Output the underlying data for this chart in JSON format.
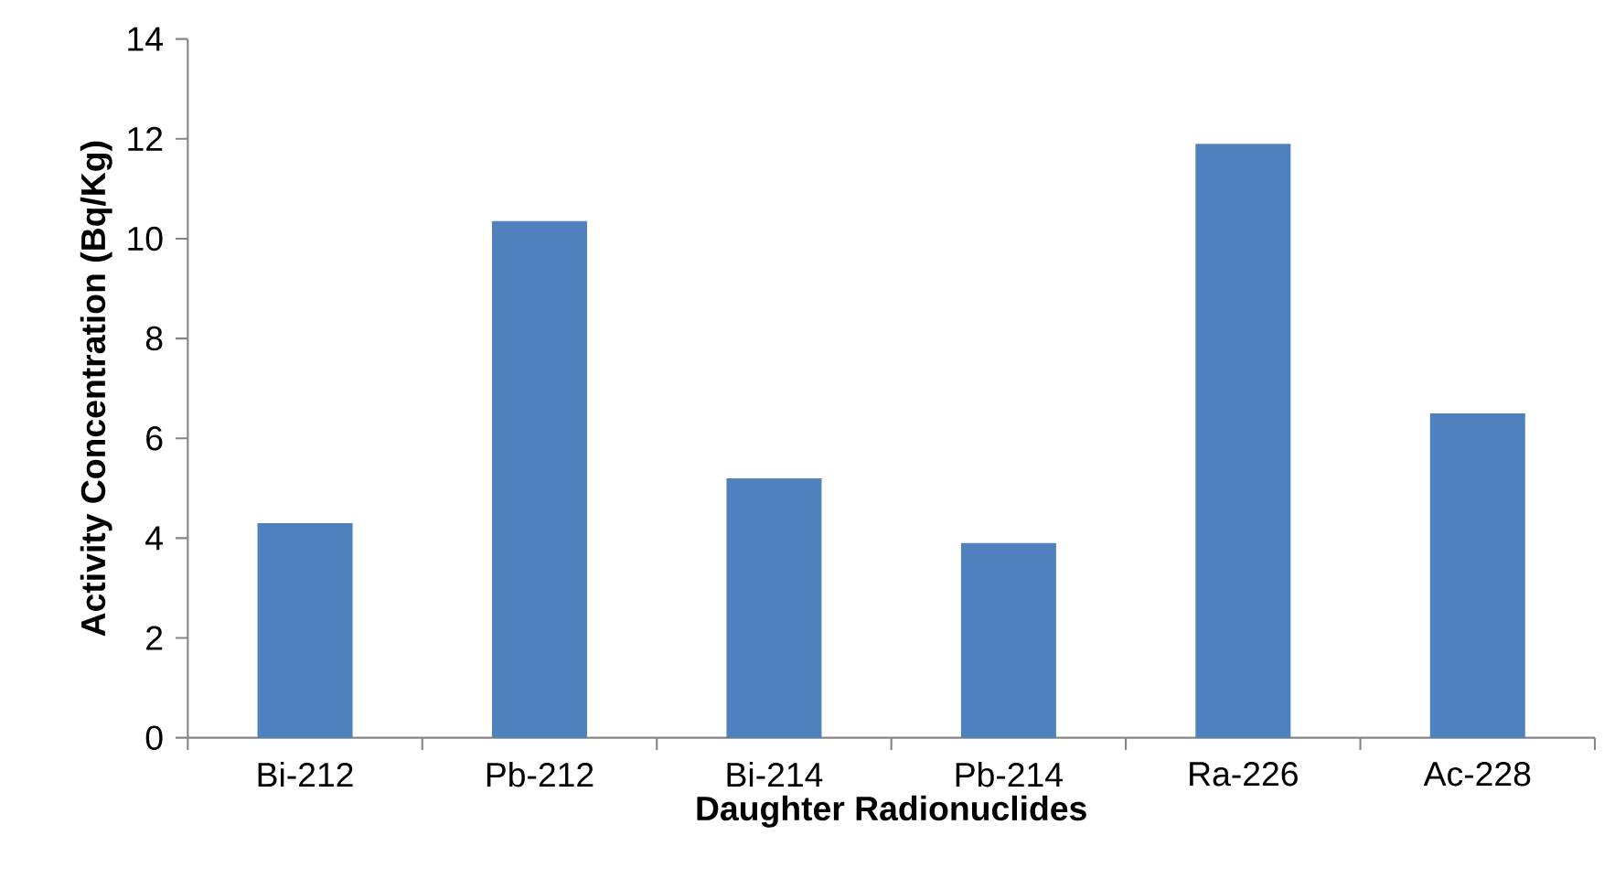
{
  "chart_data": {
    "type": "bar",
    "xlabel": "Daughter Radionuclides",
    "ylabel": "Activity Concentration (Bq/Kg)",
    "categories": [
      "Bi-212",
      "Pb-212",
      "Bi-214",
      "Pb-214",
      "Ra-226",
      "Ac-228"
    ],
    "values": [
      4.3,
      10.35,
      5.2,
      3.9,
      11.9,
      6.5
    ],
    "color": "#4f81bd",
    "ylim": [
      0,
      14
    ],
    "yticks": [
      0,
      2,
      4,
      6,
      8,
      10,
      12,
      14
    ]
  }
}
